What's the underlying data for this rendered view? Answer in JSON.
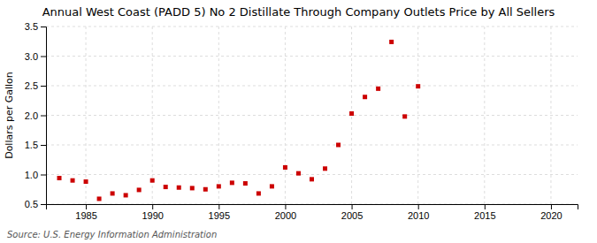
{
  "chart_data": {
    "type": "scatter",
    "title": "Annual West Coast (PADD 5) No 2 Distillate Through Company Outlets Price by All Sellers",
    "ylabel": "Dollars per Gallon",
    "annotations": [
      "Source: U.S. Energy Information Administration"
    ],
    "x": [
      1983,
      1984,
      1985,
      1986,
      1987,
      1988,
      1989,
      1990,
      1991,
      1992,
      1993,
      1994,
      1995,
      1996,
      1997,
      1998,
      1999,
      2000,
      2001,
      2002,
      2003,
      2004,
      2005,
      2006,
      2007,
      2008,
      2009,
      2010
    ],
    "values": [
      0.94,
      0.9,
      0.88,
      0.59,
      0.68,
      0.65,
      0.74,
      0.9,
      0.79,
      0.78,
      0.77,
      0.75,
      0.8,
      0.86,
      0.85,
      0.68,
      0.8,
      1.12,
      1.02,
      0.92,
      1.1,
      1.5,
      2.03,
      2.31,
      2.45,
      3.24,
      1.98,
      2.49
    ],
    "color": "#cc0000",
    "marker": "square",
    "xlim": [
      1982,
      2022
    ],
    "ylim": [
      0.5,
      3.5
    ],
    "xticks": [
      1985,
      1990,
      1995,
      2000,
      2005,
      2010,
      2015,
      2020
    ],
    "yticks": [
      0.5,
      {
        "value": 1.0,
        "label": "1.0"
      },
      1.5,
      {
        "value": 2.0,
        "label": "2.0"
      },
      2.5,
      {
        "value": 3.0,
        "label": "3.0"
      },
      3.5
    ],
    "grid": true
  }
}
